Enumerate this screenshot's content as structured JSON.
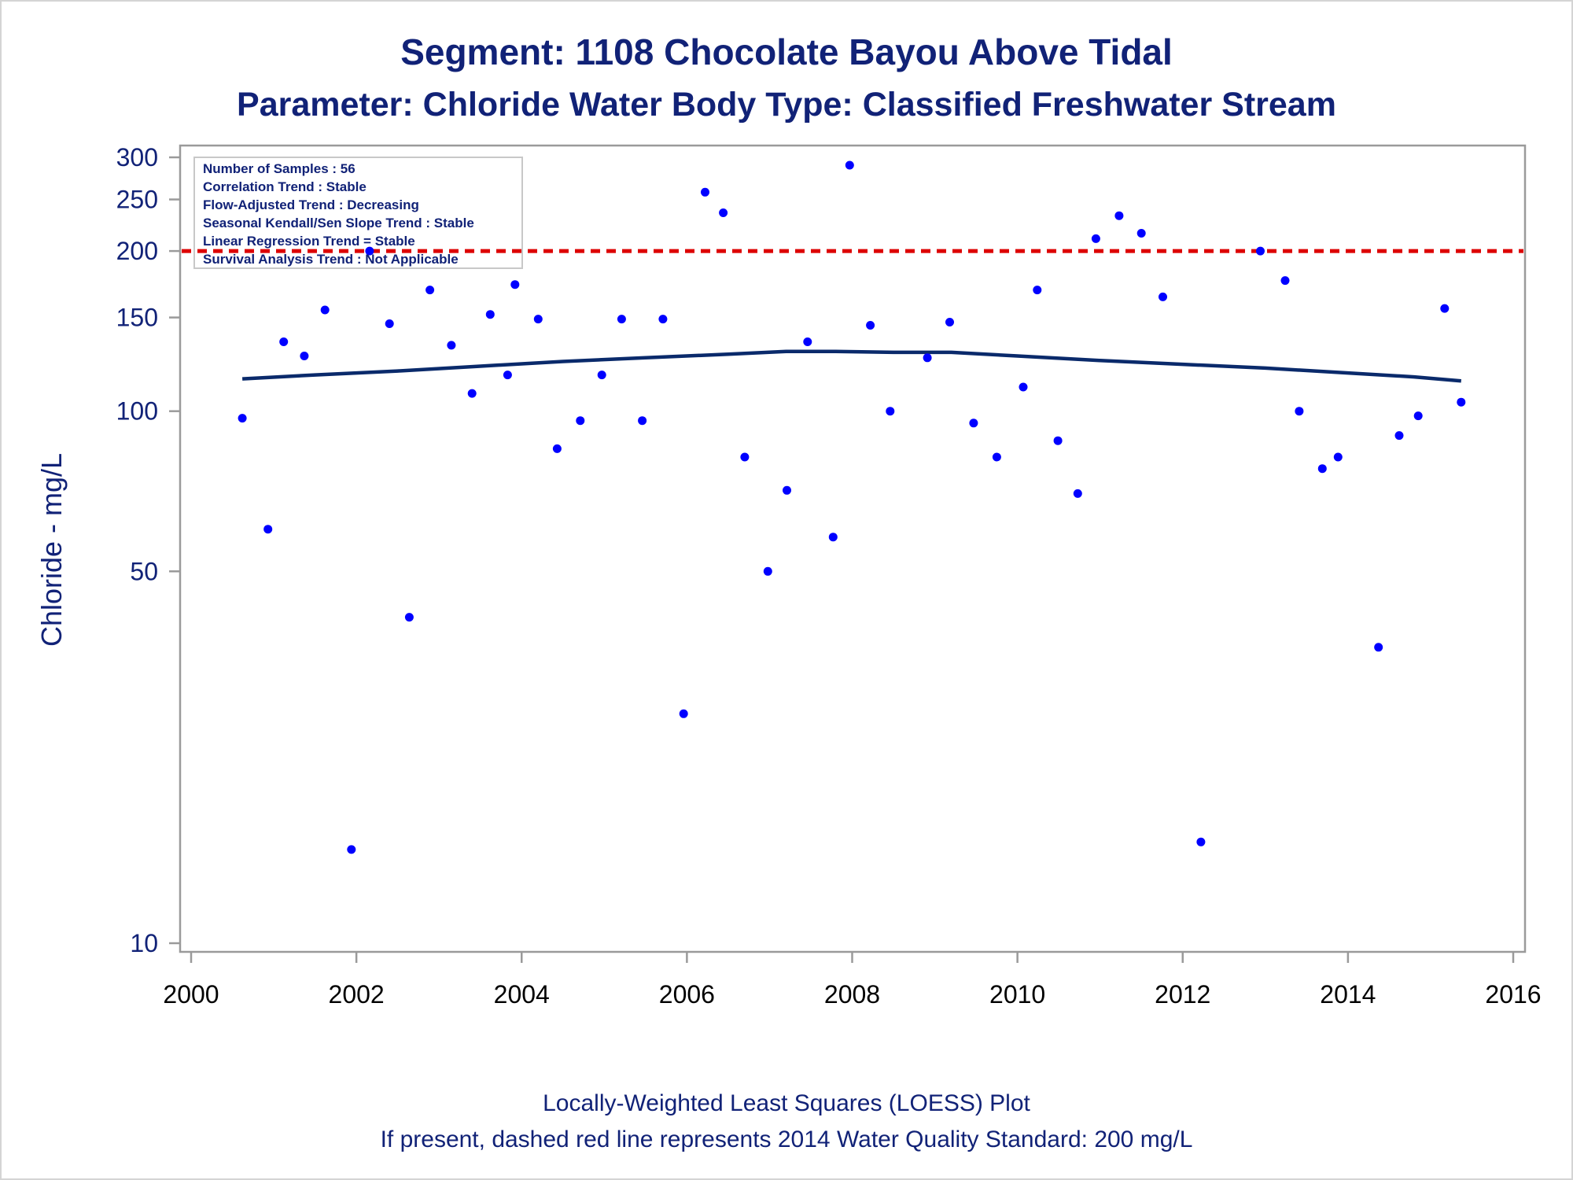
{
  "colors": {
    "title": "#112277",
    "axis_frame": "#9a9a9a",
    "points": "#0000ff",
    "loess": "#0a2a6b",
    "standard_line": "#dd0000"
  },
  "chart_data": {
    "type": "scatter",
    "title": "Segment: 1108  Chocolate Bayou Above Tidal",
    "subtitle": "Parameter: Chloride   Water Body Type: Classified Freshwater Stream",
    "xlabel": "",
    "ylabel": "Chloride - mg/L",
    "y_scale": "log",
    "xlim": [
      2000,
      2016
    ],
    "ylim": [
      10,
      300
    ],
    "x_ticks": [
      2000,
      2002,
      2004,
      2006,
      2008,
      2010,
      2012,
      2014,
      2016
    ],
    "y_ticks": [
      10,
      50,
      100,
      150,
      200,
      250,
      300
    ],
    "grid": false,
    "standard_line": {
      "value": 200,
      "style": "dashed",
      "color": "#dd0000"
    },
    "stats_box": {
      "placement": "top-left",
      "lines": [
        "Number of Samples : 56",
        "Correlation Trend : Stable",
        "Flow-Adjusted Trend : Decreasing",
        "Seasonal Kendall/Sen Slope Trend : Stable",
        "Linear Regression Trend = Stable",
        "Survival Analysis Trend : Not Applicable"
      ]
    },
    "points": [
      {
        "x": 2000.62,
        "y": 97
      },
      {
        "x": 2000.93,
        "y": 60
      },
      {
        "x": 2001.12,
        "y": 135
      },
      {
        "x": 2001.37,
        "y": 127
      },
      {
        "x": 2001.62,
        "y": 155
      },
      {
        "x": 2001.94,
        "y": 15
      },
      {
        "x": 2002.16,
        "y": 200
      },
      {
        "x": 2002.4,
        "y": 146
      },
      {
        "x": 2002.64,
        "y": 41
      },
      {
        "x": 2002.89,
        "y": 169
      },
      {
        "x": 2003.15,
        "y": 133
      },
      {
        "x": 2003.4,
        "y": 108
      },
      {
        "x": 2003.62,
        "y": 152
      },
      {
        "x": 2003.83,
        "y": 117
      },
      {
        "x": 2003.92,
        "y": 173
      },
      {
        "x": 2004.2,
        "y": 149
      },
      {
        "x": 2004.43,
        "y": 85
      },
      {
        "x": 2004.71,
        "y": 96
      },
      {
        "x": 2004.97,
        "y": 117
      },
      {
        "x": 2005.21,
        "y": 149
      },
      {
        "x": 2005.46,
        "y": 96
      },
      {
        "x": 2005.71,
        "y": 149
      },
      {
        "x": 2005.96,
        "y": 27
      },
      {
        "x": 2006.22,
        "y": 258
      },
      {
        "x": 2006.44,
        "y": 236
      },
      {
        "x": 2006.7,
        "y": 82
      },
      {
        "x": 2006.98,
        "y": 50
      },
      {
        "x": 2007.21,
        "y": 71
      },
      {
        "x": 2007.46,
        "y": 135
      },
      {
        "x": 2007.77,
        "y": 58
      },
      {
        "x": 2007.97,
        "y": 290
      },
      {
        "x": 2008.22,
        "y": 145
      },
      {
        "x": 2008.46,
        "y": 100
      },
      {
        "x": 2008.91,
        "y": 126
      },
      {
        "x": 2009.18,
        "y": 147
      },
      {
        "x": 2009.47,
        "y": 95
      },
      {
        "x": 2009.75,
        "y": 82
      },
      {
        "x": 2010.07,
        "y": 111
      },
      {
        "x": 2010.24,
        "y": 169
      },
      {
        "x": 2010.49,
        "y": 88
      },
      {
        "x": 2010.73,
        "y": 70
      },
      {
        "x": 2010.95,
        "y": 211
      },
      {
        "x": 2011.23,
        "y": 233
      },
      {
        "x": 2011.5,
        "y": 216
      },
      {
        "x": 2011.76,
        "y": 164
      },
      {
        "x": 2012.22,
        "y": 15.5
      },
      {
        "x": 2012.94,
        "y": 200
      },
      {
        "x": 2013.24,
        "y": 176
      },
      {
        "x": 2013.41,
        "y": 100
      },
      {
        "x": 2013.69,
        "y": 78
      },
      {
        "x": 2013.88,
        "y": 82
      },
      {
        "x": 2014.37,
        "y": 36
      },
      {
        "x": 2014.62,
        "y": 90
      },
      {
        "x": 2014.85,
        "y": 98
      },
      {
        "x": 2015.17,
        "y": 156
      },
      {
        "x": 2015.37,
        "y": 104
      }
    ],
    "loess": {
      "name": "LOESS",
      "points": [
        {
          "x": 2000.62,
          "y": 115
        },
        {
          "x": 2001.5,
          "y": 117
        },
        {
          "x": 2002.5,
          "y": 119
        },
        {
          "x": 2003.5,
          "y": 121.5
        },
        {
          "x": 2004.5,
          "y": 124
        },
        {
          "x": 2005.5,
          "y": 126
        },
        {
          "x": 2006.5,
          "y": 128
        },
        {
          "x": 2007.2,
          "y": 129.5
        },
        {
          "x": 2007.8,
          "y": 129.5
        },
        {
          "x": 2008.5,
          "y": 129
        },
        {
          "x": 2009.2,
          "y": 129
        },
        {
          "x": 2010.0,
          "y": 127
        },
        {
          "x": 2011.0,
          "y": 124.5
        },
        {
          "x": 2012.0,
          "y": 122.5
        },
        {
          "x": 2013.0,
          "y": 120.5
        },
        {
          "x": 2014.0,
          "y": 118
        },
        {
          "x": 2014.8,
          "y": 116
        },
        {
          "x": 2015.37,
          "y": 114
        }
      ]
    },
    "footnotes": [
      "Locally-Weighted Least Squares (LOESS) Plot",
      "If present, dashed red line represents 2014 Water Quality Standard: 200    mg/L"
    ]
  }
}
